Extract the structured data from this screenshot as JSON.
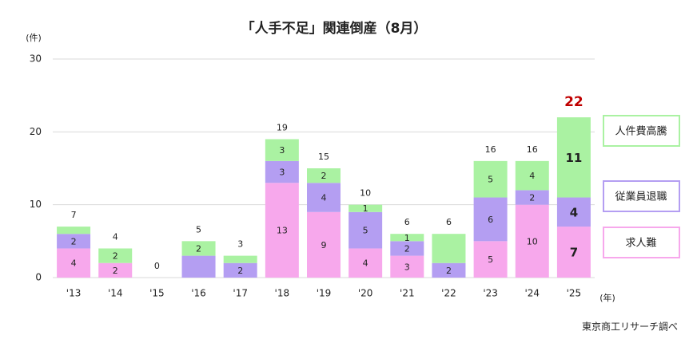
{
  "chart_data": {
    "type": "stacked-bar",
    "title": "「人手不足」関連倒産（8月）",
    "y_unit": "(件)",
    "x_unit": "(年)",
    "source": "東京商工リサーチ調べ",
    "categories": [
      "'13",
      "'14",
      "'15",
      "'16",
      "'17",
      "'18",
      "'19",
      "'20",
      "'21",
      "'22",
      "'23",
      "'24",
      "'25"
    ],
    "series": [
      {
        "name": "求人難",
        "color": "#f7a8ec",
        "values": [
          4,
          2,
          0,
          0,
          0,
          13,
          9,
          4,
          3,
          0,
          5,
          10,
          7
        ],
        "value_labels": [
          "4",
          "2",
          null,
          null,
          null,
          "13",
          "9",
          "4",
          "3",
          null,
          "5",
          "10",
          "7"
        ]
      },
      {
        "name": "従業員退職",
        "color": "#b49ef2",
        "values": [
          2,
          0,
          0,
          3,
          2,
          3,
          4,
          5,
          2,
          2,
          6,
          2,
          4
        ],
        "value_labels": [
          "2",
          null,
          null,
          null,
          "2",
          "3",
          "4",
          "5",
          "2",
          "2",
          "6",
          "2",
          "4"
        ]
      },
      {
        "name": "人件費高騰",
        "color": "#aaf2a2",
        "values": [
          1,
          2,
          0,
          2,
          1,
          3,
          2,
          1,
          1,
          4,
          5,
          4,
          11
        ],
        "value_labels": [
          null,
          "2",
          null,
          "2",
          null,
          "3",
          "2",
          "1",
          "1",
          null,
          "5",
          "4",
          "11"
        ]
      }
    ],
    "totals": [
      7,
      4,
      0,
      5,
      3,
      19,
      15,
      10,
      6,
      6,
      16,
      16,
      22
    ],
    "ylim": [
      0,
      30
    ],
    "yticks": [
      0,
      10,
      20,
      30
    ],
    "grid": true
  }
}
